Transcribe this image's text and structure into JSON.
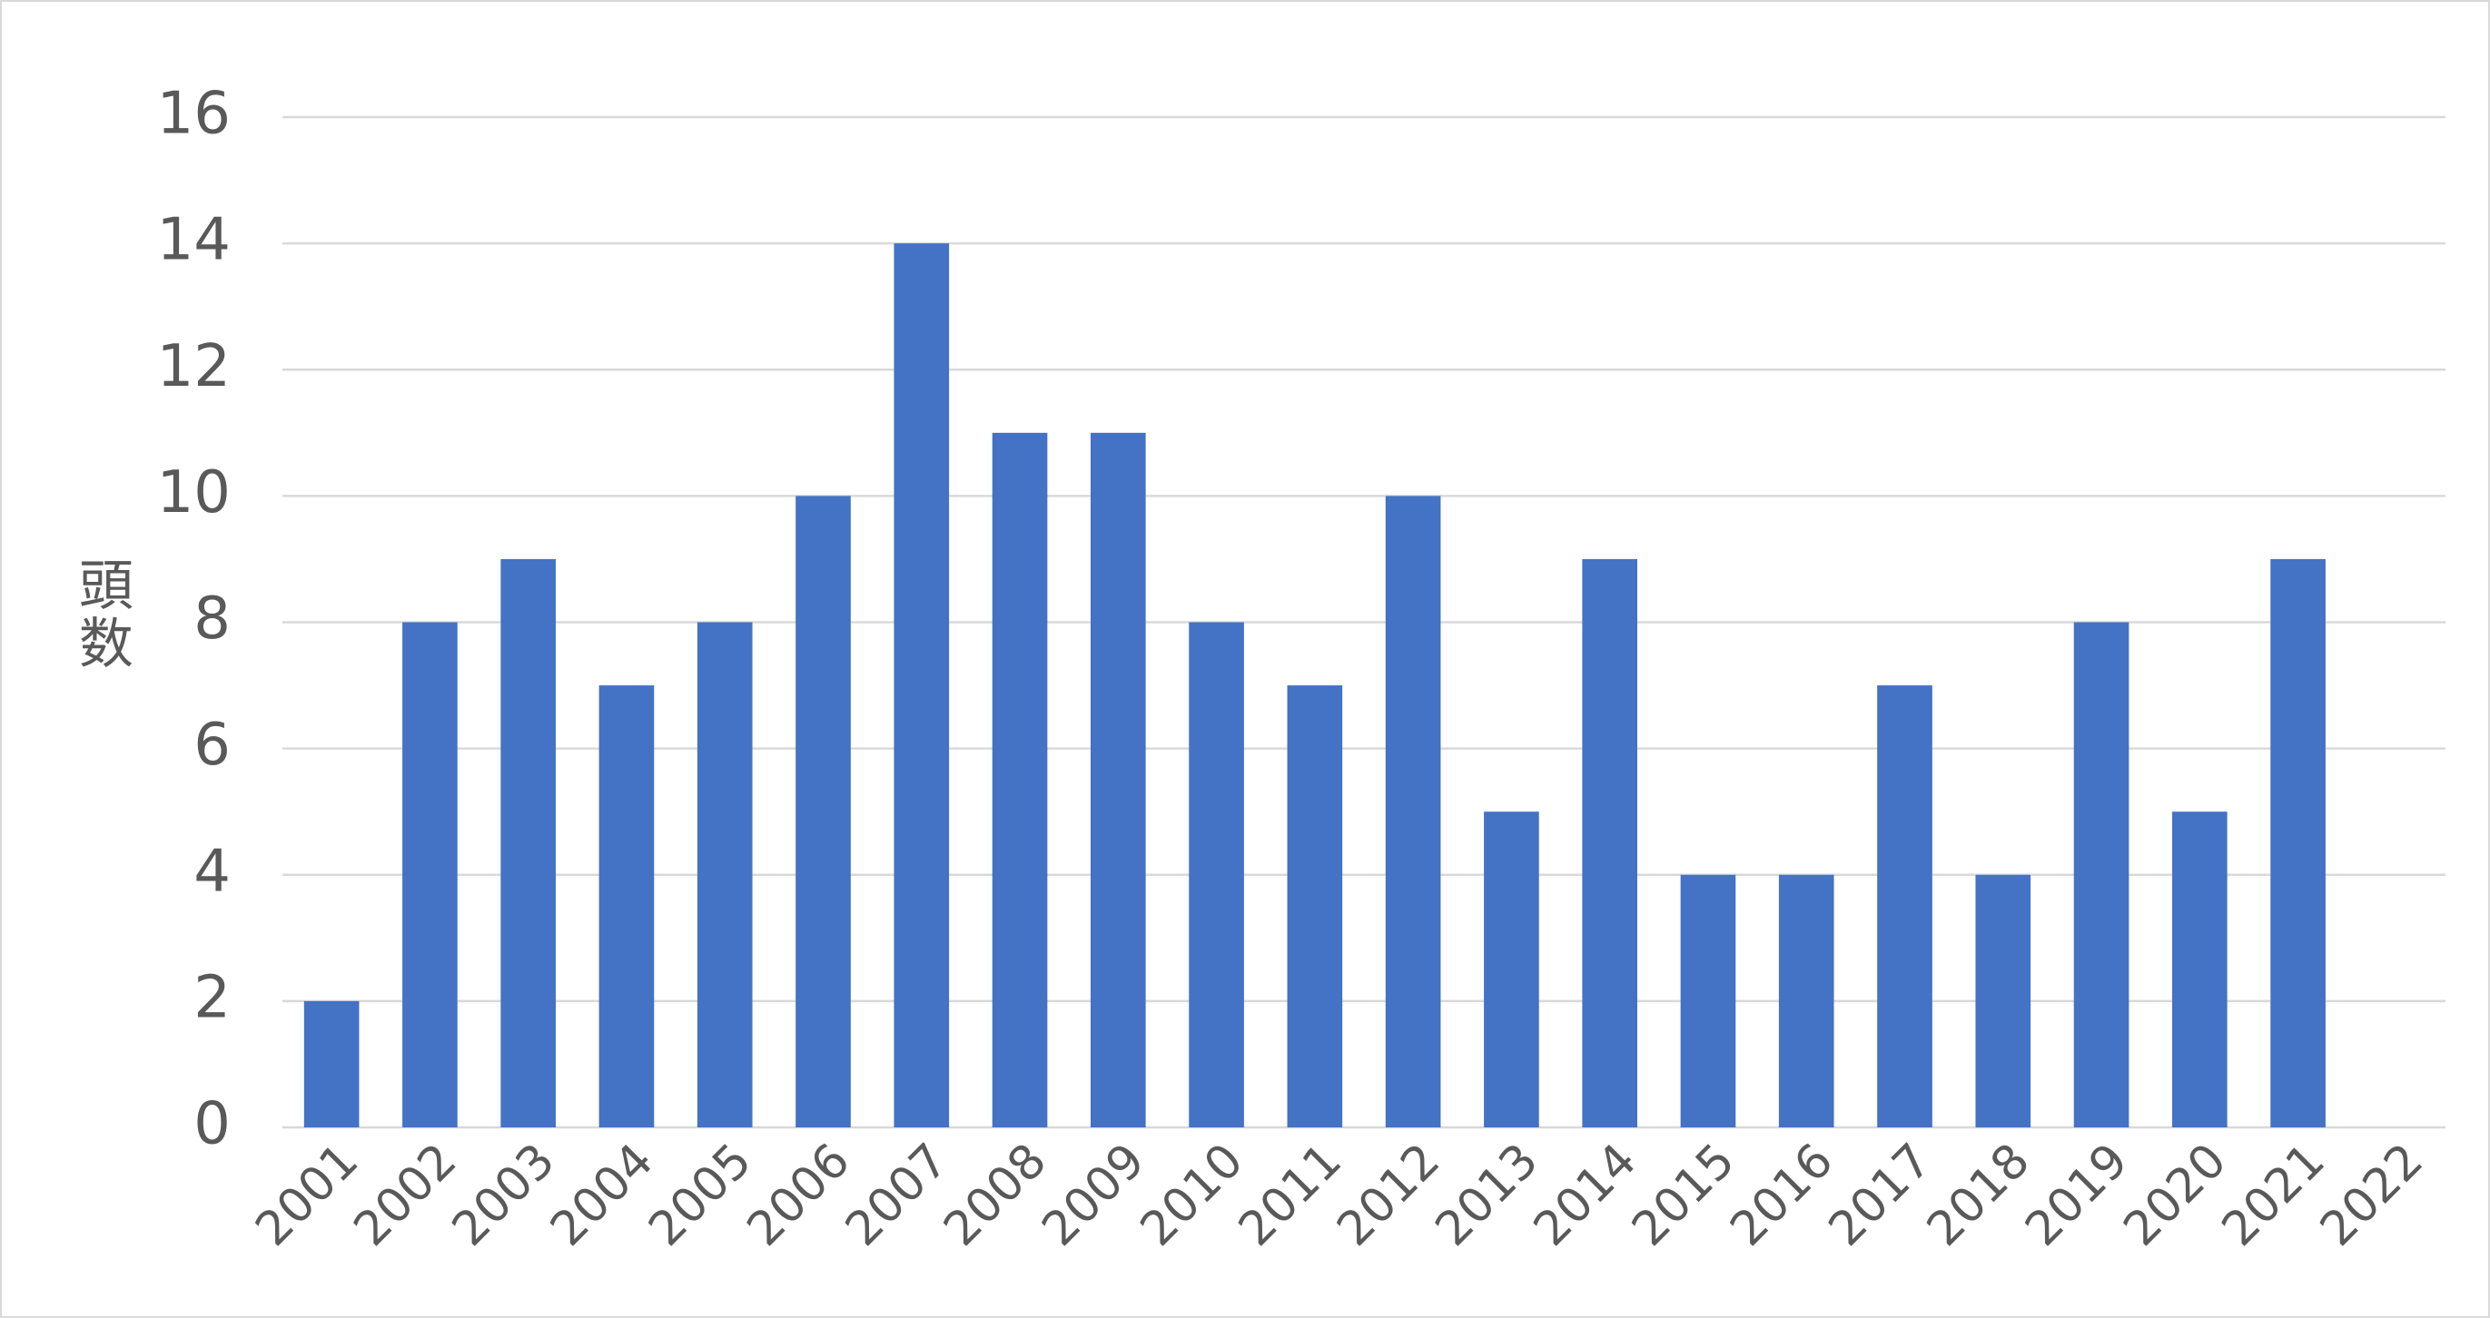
{
  "chart_data": {
    "type": "bar",
    "y_label": "頭数",
    "categories": [
      "2001",
      "2002",
      "2003",
      "2004",
      "2005",
      "2006",
      "2007",
      "2008",
      "2009",
      "2010",
      "2011",
      "2012",
      "2013",
      "2014",
      "2015",
      "2016",
      "2017",
      "2018",
      "2019",
      "2020",
      "2021",
      "2022"
    ],
    "values": [
      2,
      8,
      9,
      7,
      8,
      10,
      14,
      11,
      11,
      8,
      7,
      10,
      5,
      9,
      4,
      4,
      7,
      4,
      8,
      5,
      9,
      null
    ],
    "color": "#4472c4",
    "ylim": [
      0,
      16
    ],
    "yticks": [
      0,
      2,
      4,
      6,
      8,
      10,
      12,
      14,
      16
    ],
    "grid": true
  }
}
